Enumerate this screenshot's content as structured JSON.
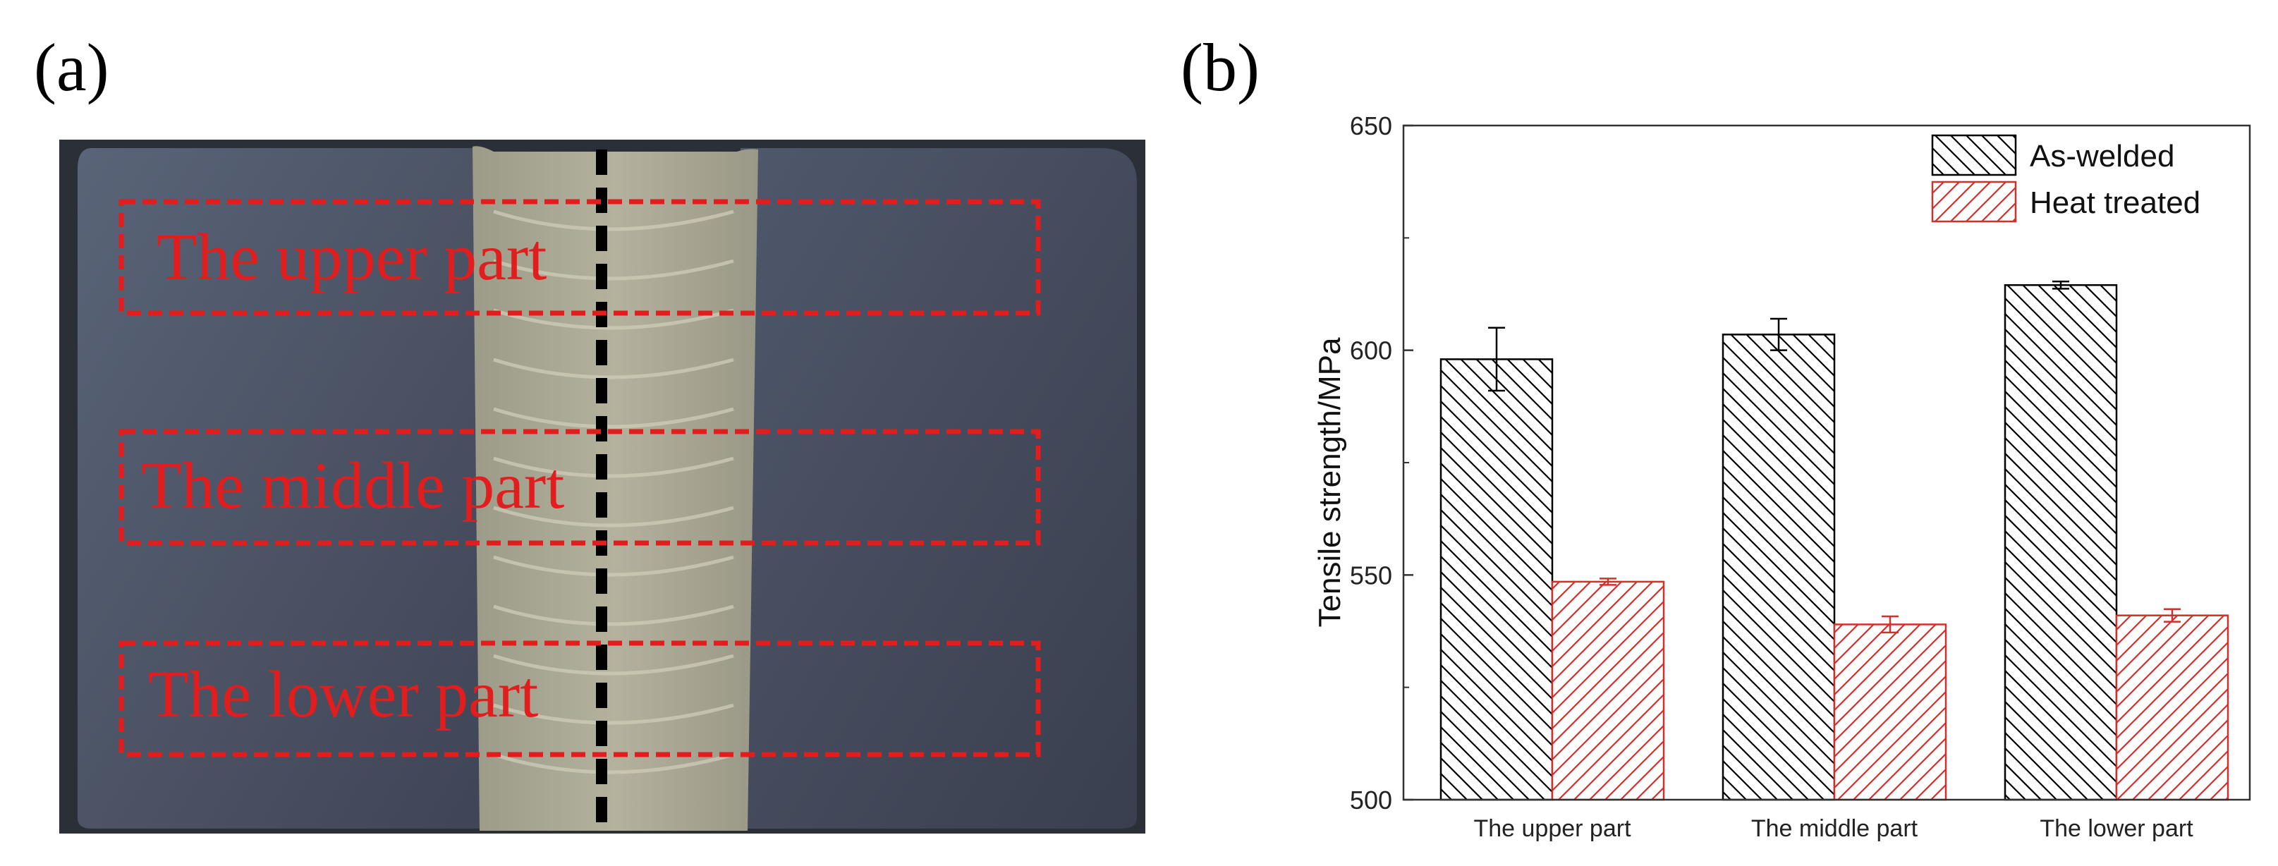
{
  "figure": {
    "panel_a_label": "(a)",
    "panel_b_label": "(b)"
  },
  "photo": {
    "regions": [
      {
        "label": "The upper part"
      },
      {
        "label": "The middle part"
      },
      {
        "label": "The lower part"
      }
    ],
    "colors": {
      "plate": "#4a5163",
      "weld": "#a8a692",
      "region_box": "#e11d1d",
      "center_line": "#000000"
    }
  },
  "chart_data": {
    "type": "bar",
    "title": "",
    "xlabel": "",
    "ylabel": "Tensile strength/MPa",
    "ylim": [
      500,
      650
    ],
    "yticks": [
      500,
      550,
      600,
      650
    ],
    "categories": [
      "The upper part",
      "The middle part",
      "The lower part"
    ],
    "series": [
      {
        "name": "As-welded",
        "values": [
          598,
          603.5,
          614.5
        ],
        "errors": [
          7,
          3.5,
          0.8
        ],
        "color": "#000000",
        "hatch": "backslash"
      },
      {
        "name": "Heat treated",
        "values": [
          548.5,
          539,
          541
        ],
        "errors": [
          0.7,
          1.8,
          1.4
        ],
        "color": "#d0312d",
        "hatch": "slash"
      }
    ],
    "legend_position": "top-right",
    "grid": false
  }
}
